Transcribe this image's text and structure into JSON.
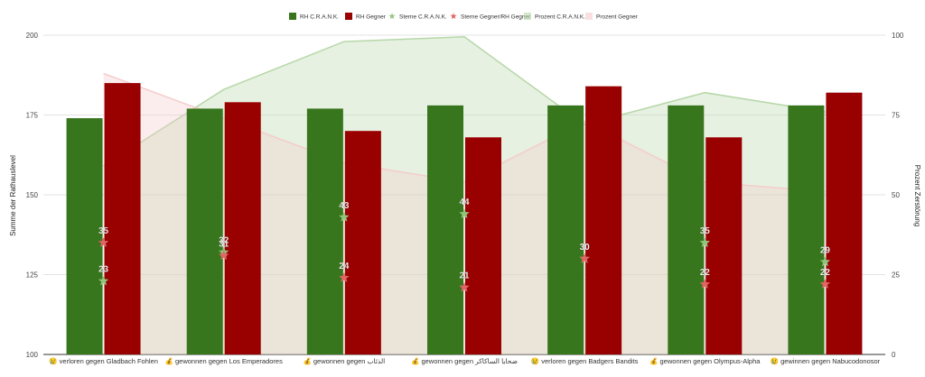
{
  "chart_data": {
    "type": "bar",
    "categories": [
      "😢 verloren gegen Gladbach Fohlen",
      "💰 gewonnen gegen Los Emperadores",
      "💰 gewonnen gegen الذئاب",
      "💰 gewonnen gegen ضحايا الساكاكر",
      "😢 verloren gegen Badgers Bandits",
      "💰 gewonnen gegen Olympus-Alpha",
      "😢 gewinnen gegen Nabucodonosor"
    ],
    "series": [
      {
        "name": "RH C.R.A.N.K.",
        "kind": "bar",
        "axis": "left",
        "color": "#38761d",
        "values": [
          174,
          177,
          177,
          178,
          178,
          178,
          178
        ]
      },
      {
        "name": "RH Gegner",
        "kind": "bar",
        "axis": "left",
        "color": "#990000",
        "values": [
          185,
          179,
          170,
          168,
          184,
          168,
          182
        ]
      },
      {
        "name": "Sterne C.R.A.N.K.",
        "kind": "star",
        "axis": "left",
        "color": "#93c47d",
        "values": [
          23,
          32,
          43,
          44,
          30,
          35,
          29
        ]
      },
      {
        "name": "Sterne Gegner/RH Gegner",
        "kind": "star",
        "axis": "left",
        "color": "#e06666",
        "values": [
          35,
          31,
          24,
          21,
          30,
          22,
          22
        ]
      },
      {
        "name": "Prozent C.R.A.N.K.",
        "kind": "area",
        "axis": "right",
        "color": "#b6d7a8",
        "values": [
          59,
          83,
          98,
          99.5,
          72,
          82,
          76
        ]
      },
      {
        "name": "Prozent Gegner",
        "kind": "area",
        "axis": "right",
        "color": "#f4cccc",
        "values": [
          88,
          74,
          60,
          54,
          73,
          54,
          51
        ]
      }
    ],
    "ylabel": "Summe der Rathauslevel",
    "y2label": "Prozent Zerstörung",
    "ylim": [
      100,
      200
    ],
    "yticks": [
      100,
      125,
      150,
      175,
      200
    ],
    "y2lim": [
      0,
      100
    ],
    "y2ticks": [
      0,
      25,
      50,
      75,
      100
    ],
    "grid": true,
    "legend": "top"
  }
}
